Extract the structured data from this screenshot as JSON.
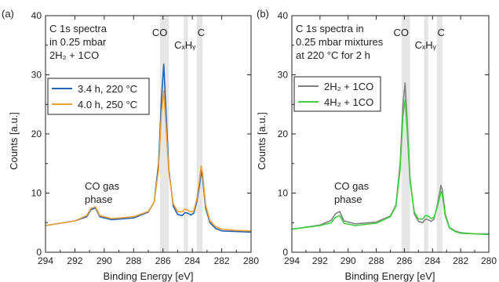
{
  "colors": {
    "blue": "#1f63b5",
    "orange": "#f0a030",
    "gray": "#808080",
    "green": "#40d040",
    "band": "#e6e6e6",
    "axis": "#222222"
  },
  "chart_data": [
    {
      "type": "line",
      "panel_label": "(a)",
      "xlabel": "Binding Energy [eV]",
      "ylabel": "Counts [a.u.]",
      "xlim": [
        294,
        280
      ],
      "ylim": [
        0,
        40
      ],
      "x_reversed": true,
      "xticks": [
        "294",
        "292",
        "290",
        "288",
        "286",
        "284",
        "282",
        "280"
      ],
      "yticks": [
        "0",
        "10",
        "20",
        "30",
        "40"
      ],
      "legend_placement": "upper-left",
      "annotation": [
        "C 1s spectra",
        "in 0.25 mbar",
        "2H₂ + 1CO"
      ],
      "gas_phase_label": [
        "CO gas",
        "phase"
      ],
      "bands": [
        {
          "label": "CO",
          "x_min": 285.6,
          "x_max": 286.2
        },
        {
          "label": "CₓHᵧ",
          "x_min": 284.3,
          "x_max": 284.6
        },
        {
          "label": "C",
          "x_min": 283.3,
          "x_max": 283.7
        }
      ],
      "x": [
        294,
        292,
        291.2,
        290.9,
        290.6,
        290.3,
        289.5,
        288,
        287,
        286.6,
        286.3,
        286.1,
        285.95,
        285.8,
        285.6,
        285.3,
        285,
        284.7,
        284.5,
        284.3,
        284.1,
        283.9,
        283.7,
        283.5,
        283.4,
        283.3,
        283.1,
        282.8,
        282.4,
        282,
        281,
        280
      ],
      "series": [
        {
          "name": "3.4 h, 220 °C",
          "color": "blue",
          "values": [
            4.5,
            5.3,
            6.0,
            7.2,
            7.5,
            6.0,
            5.5,
            5.8,
            6.8,
            8.5,
            15,
            26,
            31.8,
            24,
            14,
            7.8,
            6.4,
            6.2,
            6.7,
            6.6,
            6.3,
            6.6,
            8.5,
            11.5,
            13.8,
            12.5,
            7.5,
            5.0,
            4.0,
            3.6,
            3.5,
            3.4
          ]
        },
        {
          "name": "4.0 h, 250 °C",
          "color": "orange",
          "values": [
            4.5,
            5.3,
            6.2,
            7.4,
            7.7,
            6.2,
            5.7,
            6.0,
            6.9,
            8.5,
            14,
            23.5,
            27.3,
            21.5,
            13.5,
            8.2,
            6.9,
            6.8,
            7.3,
            7.1,
            6.8,
            7.0,
            9.0,
            12.5,
            14.6,
            13.3,
            8.0,
            5.3,
            4.3,
            3.9,
            3.7,
            3.6
          ]
        }
      ]
    },
    {
      "type": "line",
      "panel_label": "(b)",
      "xlabel": "Binding Energy [eV]",
      "ylabel": "Counts [a.u.]",
      "xlim": [
        294,
        280
      ],
      "ylim": [
        0,
        40
      ],
      "x_reversed": true,
      "xticks": [
        "294",
        "292",
        "290",
        "288",
        "286",
        "284",
        "282",
        "280"
      ],
      "yticks": [
        "0",
        "10",
        "20",
        "30",
        "40"
      ],
      "legend_placement": "upper-left",
      "annotation": [
        "C 1s spectra in",
        "0.25 mbar mixtures",
        "at 220 °C for 2 h"
      ],
      "gas_phase_label": [
        "CO gas",
        "phase"
      ],
      "bands": [
        {
          "label": "CO",
          "x_min": 285.6,
          "x_max": 286.2
        },
        {
          "label": "CₓHᵧ",
          "x_min": 284.3,
          "x_max": 284.6
        },
        {
          "label": "C",
          "x_min": 283.3,
          "x_max": 283.7
        }
      ],
      "x": [
        294,
        292,
        291.2,
        290.9,
        290.6,
        290.3,
        289.5,
        288,
        287,
        286.6,
        286.3,
        286.1,
        285.95,
        285.8,
        285.6,
        285.3,
        285,
        284.7,
        284.5,
        284.3,
        284.1,
        283.9,
        283.7,
        283.5,
        283.4,
        283.3,
        283.1,
        282.8,
        282.4,
        282,
        281,
        280
      ],
      "series": [
        {
          "name": "2H₂ + 1CO",
          "color": "gray",
          "values": [
            3.9,
            4.6,
            5.4,
            6.5,
            6.9,
            5.3,
            4.8,
            5.1,
            6.1,
            8.0,
            15,
            25,
            28.6,
            22,
            12.5,
            6.5,
            5.2,
            5.0,
            5.6,
            5.5,
            5.2,
            5.6,
            7.5,
            10.0,
            11.3,
            10.5,
            6.5,
            4.2,
            3.6,
            3.3,
            3.1,
            3.1
          ]
        },
        {
          "name": "4H₂ + 1CO",
          "color": "green",
          "values": [
            3.9,
            4.5,
            5.0,
            5.9,
            6.2,
            4.9,
            4.5,
            4.9,
            6.0,
            7.8,
            14,
            23,
            25.8,
            20.5,
            12.0,
            6.8,
            5.6,
            5.6,
            6.2,
            6.1,
            5.7,
            5.9,
            7.3,
            9.2,
            10.3,
            9.7,
            6.2,
            4.1,
            3.5,
            3.2,
            3.1,
            3.0
          ]
        }
      ]
    }
  ]
}
